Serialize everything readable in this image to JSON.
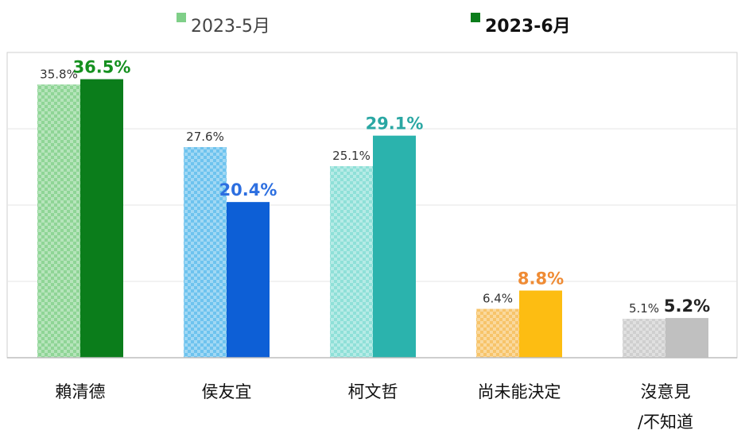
{
  "chart_data": {
    "type": "bar",
    "title": "",
    "xlabel": "",
    "ylabel": "",
    "ylim": [
      0,
      40
    ],
    "grid": true,
    "legend_position": "top-center",
    "categories": [
      "賴清德",
      "侯友宜",
      "柯文哲",
      "尚未能決定",
      [
        "沒意見",
        "/不知道"
      ]
    ],
    "series": [
      {
        "name": "2023-5月",
        "values": [
          35.8,
          27.6,
          25.1,
          6.4,
          5.1
        ],
        "labels": [
          "35.8%",
          "27.6%",
          "25.1%",
          "6.4%",
          "5.1%"
        ],
        "colors": [
          "#8fd596",
          "#6ec3ee",
          "#8fe0d8",
          "#f7c46a",
          "#cfcfcf"
        ],
        "pattern": "checkered"
      },
      {
        "name": "2023-6月",
        "values": [
          36.5,
          20.4,
          29.1,
          8.8,
          5.2
        ],
        "labels": [
          "36.5%",
          "20.4%",
          "29.1%",
          "8.8%",
          "5.2%"
        ],
        "colors": [
          "#0b7d1b",
          "#0d5fd6",
          "#2bb3ad",
          "#fdbd12",
          "#c0c0c0"
        ],
        "label_colors": [
          "#15901f",
          "#2d6fe0",
          "#2aa7a3",
          "#ef8b34",
          "#222222"
        ]
      }
    ],
    "legend": {
      "series0_color": "#7fcf88",
      "series1_color": "#0b7d1b"
    }
  }
}
